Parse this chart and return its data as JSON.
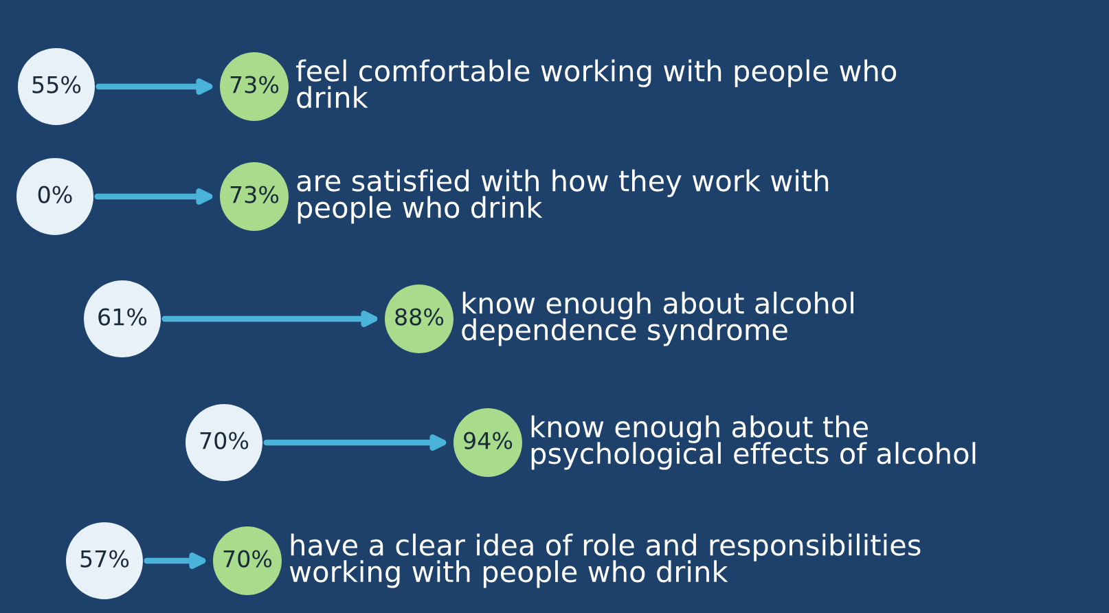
{
  "chart_data": {
    "type": "other",
    "categories": [
      "feel comfortable working with people who\ndrink",
      "are satisfied with how they work with\npeople who drink",
      "know enough about alcohol\ndependence syndrome",
      "know enough about the\npsychological effects of alcohol",
      "have a clear idea of role and responsibilities\nworking with people who drink"
    ],
    "series": [
      {
        "color": "#e8f1f8",
        "values": [
          55,
          null,
          61,
          70,
          57
        ],
        "value_labels": [
          "55%",
          "0%",
          "61%",
          "70%",
          "57%"
        ]
      },
      {
        "color": "#a9db8c",
        "values": [
          73,
          73,
          88,
          94,
          70
        ],
        "value_labels": [
          "73%",
          "73%",
          "88%",
          "94%",
          "70%"
        ]
      }
    ]
  }
}
